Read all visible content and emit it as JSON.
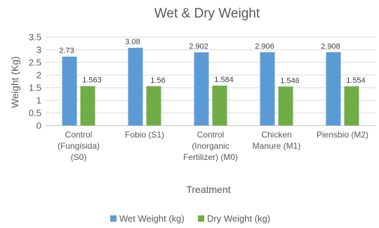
{
  "chart_data": {
    "type": "bar",
    "title": "Wet & Dry Weight",
    "xlabel": "Treatment",
    "ylabel": "Weight (Kg)",
    "ylim": [
      0,
      3.5
    ],
    "yticks": [
      "0",
      "0.5",
      "1",
      "1.5",
      "2",
      "2.5",
      "3",
      "3.5"
    ],
    "grid": true,
    "legend_position": "bottom",
    "categories": [
      [
        "Control",
        "(Fungisida)",
        "(S0)"
      ],
      [
        "Fobio (S1)"
      ],
      [
        "Control",
        "(Inorganic",
        "Fertilizer) (M0)"
      ],
      [
        "Chicken",
        "Manure (M1)"
      ],
      [
        "Piensbio (M2)"
      ]
    ],
    "series": [
      {
        "name": "Wet Weight (kg)",
        "color": "#5b9bd5",
        "values": [
          2.73,
          3.08,
          2.902,
          2.906,
          2.908
        ],
        "labels": [
          "2.73",
          "3.08",
          "2.902",
          "2.906",
          "2.908"
        ]
      },
      {
        "name": "Dry Weight (kg)",
        "color": "#70ad47",
        "values": [
          1.563,
          1.56,
          1.584,
          1.546,
          1.554
        ],
        "labels": [
          "1.563",
          "1.56",
          "1.584",
          "1.546",
          "1.554"
        ]
      }
    ]
  }
}
